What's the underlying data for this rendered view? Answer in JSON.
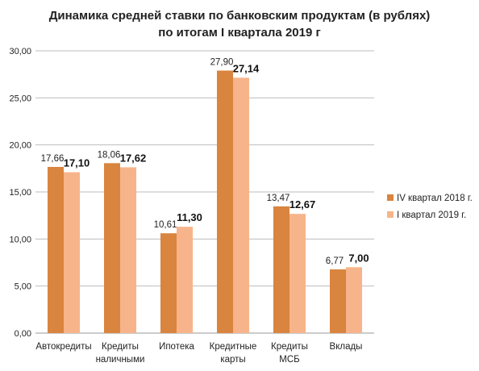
{
  "chart_data": {
    "type": "bar",
    "title_line1": "Динамика средней ставки по банковским продуктам (в рублях)",
    "title_line2": "по итогам I квартала 2019 г",
    "categories": [
      [
        "Автокредиты"
      ],
      [
        "Кредиты",
        "наличными"
      ],
      [
        "Ипотека"
      ],
      [
        "Кредитные",
        "карты"
      ],
      [
        "Кредиты",
        "МСБ"
      ],
      [
        "Вклады"
      ]
    ],
    "series": [
      {
        "name": "IV квартал 2018 г.",
        "values": [
          17.66,
          18.06,
          10.61,
          27.9,
          13.47,
          6.77
        ],
        "labels": [
          "17,66",
          "18,06",
          "10,61",
          "27,90",
          "13,47",
          "6,77"
        ],
        "color": "#D9843F"
      },
      {
        "name": "I квартал 2019 г.",
        "values": [
          17.1,
          17.62,
          11.3,
          27.14,
          12.67,
          7.0
        ],
        "labels": [
          "17,10",
          "17,62",
          "11,30",
          "27,14",
          "12,67",
          "7,00"
        ],
        "color": "#F7B48A"
      }
    ],
    "y_ticks": [
      "0,00",
      "5,00",
      "10,00",
      "15,00",
      "20,00",
      "25,00",
      "30,00"
    ],
    "y_tick_values": [
      0,
      5,
      10,
      15,
      20,
      25,
      30
    ],
    "ylim": [
      0,
      30
    ],
    "grid": true,
    "legend_position": "right"
  }
}
